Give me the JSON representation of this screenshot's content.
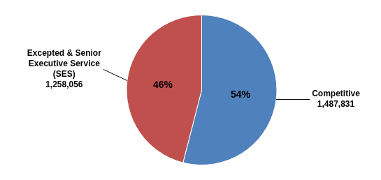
{
  "chart_data": {
    "type": "pie",
    "categories": [
      "Competitive",
      "Excepted & Senior Executive Service (SES)"
    ],
    "values": [
      54,
      46
    ],
    "value_labels": [
      "54%",
      "46%"
    ],
    "counts": [
      1487831,
      1258056
    ],
    "colors": [
      "#4f81bd",
      "#c0504d"
    ],
    "data_labels": true
  }
}
